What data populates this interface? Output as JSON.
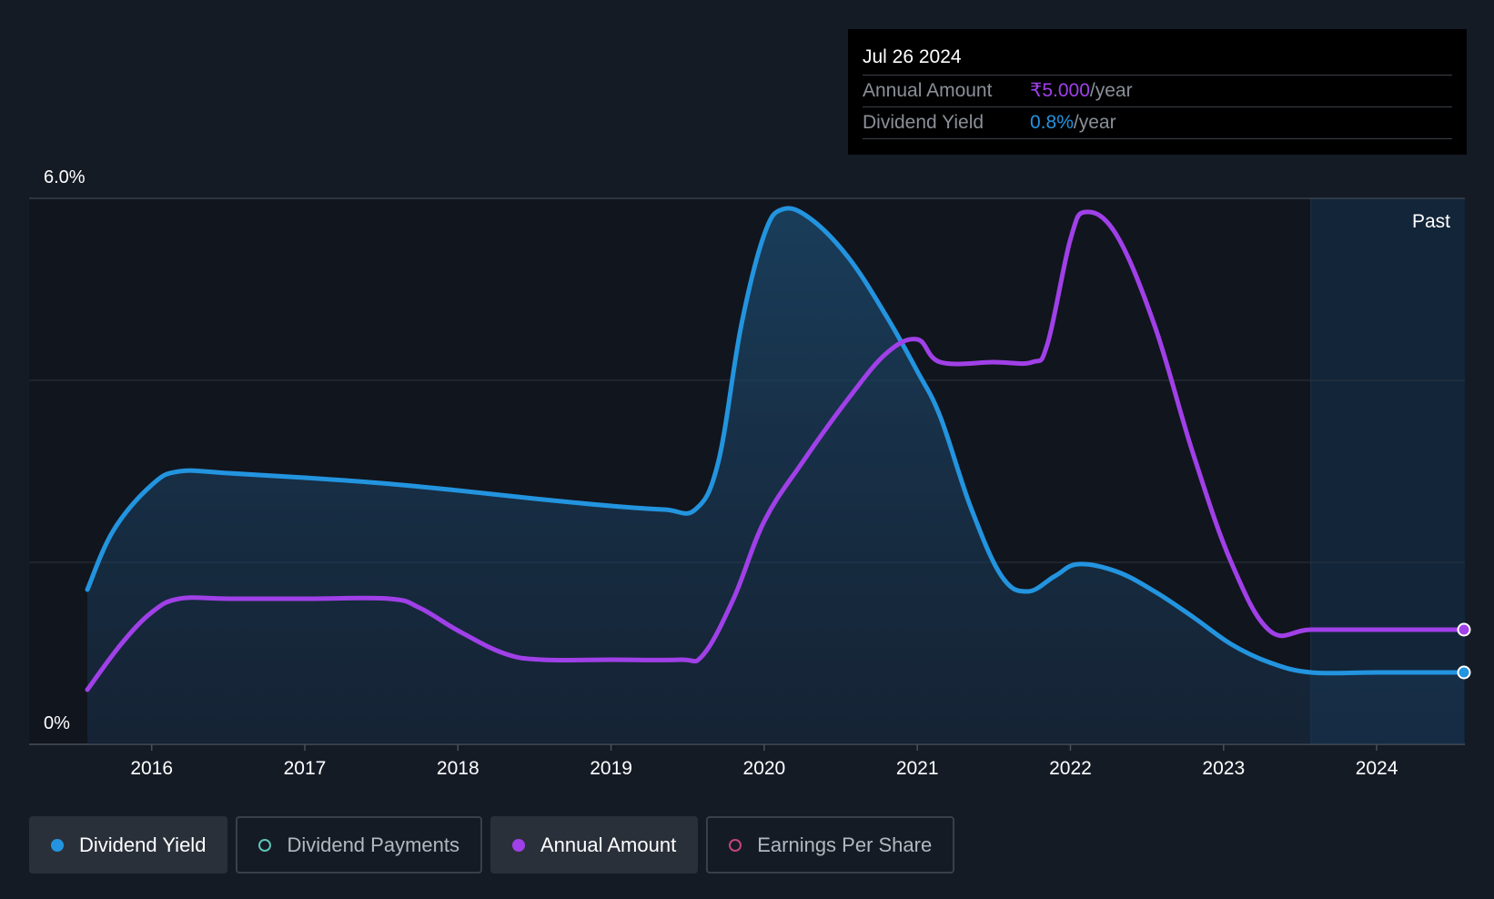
{
  "tooltip": {
    "date": "Jul 26 2024",
    "rows": [
      {
        "label": "Annual Amount",
        "value": "₹5.000",
        "unit": "/year",
        "color": "#a040e8"
      },
      {
        "label": "Dividend Yield",
        "value": "0.8%",
        "unit": "/year",
        "color": "#2394df"
      }
    ]
  },
  "legend": [
    {
      "label": "Dividend Yield",
      "active": true,
      "marker": "filled",
      "color": "#2394df"
    },
    {
      "label": "Dividend Payments",
      "active": false,
      "marker": "ring",
      "color": "#5fc4b8"
    },
    {
      "label": "Annual Amount",
      "active": true,
      "marker": "filled",
      "color": "#a040e8"
    },
    {
      "label": "Earnings Per Share",
      "active": false,
      "marker": "ring",
      "color": "#c2457a"
    }
  ],
  "chart_data": {
    "type": "line",
    "y_tick_labels": [
      "6.0%",
      "0%"
    ],
    "ylim": [
      0,
      6.0
    ],
    "x_tick_labels": [
      "2016",
      "2017",
      "2018",
      "2019",
      "2020",
      "2021",
      "2022",
      "2023",
      "2024"
    ],
    "xlim": [
      2015.58,
      2024.57
    ],
    "past_region_start": 2023.57,
    "past_label": "Past",
    "grid": true,
    "series": [
      {
        "name": "Dividend Yield",
        "color": "#2394df",
        "area": true,
        "points": [
          [
            2015.58,
            1.7
          ],
          [
            2015.75,
            2.35
          ],
          [
            2016.0,
            2.85
          ],
          [
            2016.18,
            3.0
          ],
          [
            2016.5,
            2.98
          ],
          [
            2017.0,
            2.93
          ],
          [
            2017.5,
            2.87
          ],
          [
            2018.0,
            2.79
          ],
          [
            2018.5,
            2.7
          ],
          [
            2019.0,
            2.62
          ],
          [
            2019.35,
            2.58
          ],
          [
            2019.55,
            2.58
          ],
          [
            2019.7,
            3.1
          ],
          [
            2019.85,
            4.6
          ],
          [
            2020.0,
            5.6
          ],
          [
            2020.12,
            5.88
          ],
          [
            2020.3,
            5.78
          ],
          [
            2020.55,
            5.35
          ],
          [
            2020.8,
            4.7
          ],
          [
            2021.0,
            4.1
          ],
          [
            2021.15,
            3.6
          ],
          [
            2021.35,
            2.6
          ],
          [
            2021.55,
            1.85
          ],
          [
            2021.72,
            1.68
          ],
          [
            2021.9,
            1.85
          ],
          [
            2022.05,
            1.98
          ],
          [
            2022.3,
            1.9
          ],
          [
            2022.55,
            1.68
          ],
          [
            2022.8,
            1.4
          ],
          [
            2023.05,
            1.1
          ],
          [
            2023.3,
            0.9
          ],
          [
            2023.57,
            0.79
          ],
          [
            2024.0,
            0.79
          ],
          [
            2024.57,
            0.79
          ]
        ]
      },
      {
        "name": "Annual Amount",
        "color": "#a040e8",
        "area": false,
        "points": [
          [
            2015.58,
            0.6
          ],
          [
            2015.8,
            1.1
          ],
          [
            2016.0,
            1.45
          ],
          [
            2016.18,
            1.6
          ],
          [
            2016.5,
            1.6
          ],
          [
            2017.0,
            1.6
          ],
          [
            2017.55,
            1.6
          ],
          [
            2017.75,
            1.5
          ],
          [
            2018.0,
            1.25
          ],
          [
            2018.3,
            1.0
          ],
          [
            2018.55,
            0.93
          ],
          [
            2019.0,
            0.93
          ],
          [
            2019.45,
            0.93
          ],
          [
            2019.6,
            0.98
          ],
          [
            2019.8,
            1.6
          ],
          [
            2020.0,
            2.45
          ],
          [
            2020.25,
            3.1
          ],
          [
            2020.55,
            3.8
          ],
          [
            2020.8,
            4.3
          ],
          [
            2021.0,
            4.45
          ],
          [
            2021.15,
            4.2
          ],
          [
            2021.5,
            4.2
          ],
          [
            2021.75,
            4.2
          ],
          [
            2021.85,
            4.4
          ],
          [
            2022.0,
            5.55
          ],
          [
            2022.1,
            5.85
          ],
          [
            2022.3,
            5.6
          ],
          [
            2022.55,
            4.6
          ],
          [
            2022.8,
            3.2
          ],
          [
            2023.05,
            2.0
          ],
          [
            2023.3,
            1.25
          ],
          [
            2023.57,
            1.26
          ],
          [
            2024.0,
            1.26
          ],
          [
            2024.57,
            1.26
          ]
        ]
      }
    ]
  }
}
